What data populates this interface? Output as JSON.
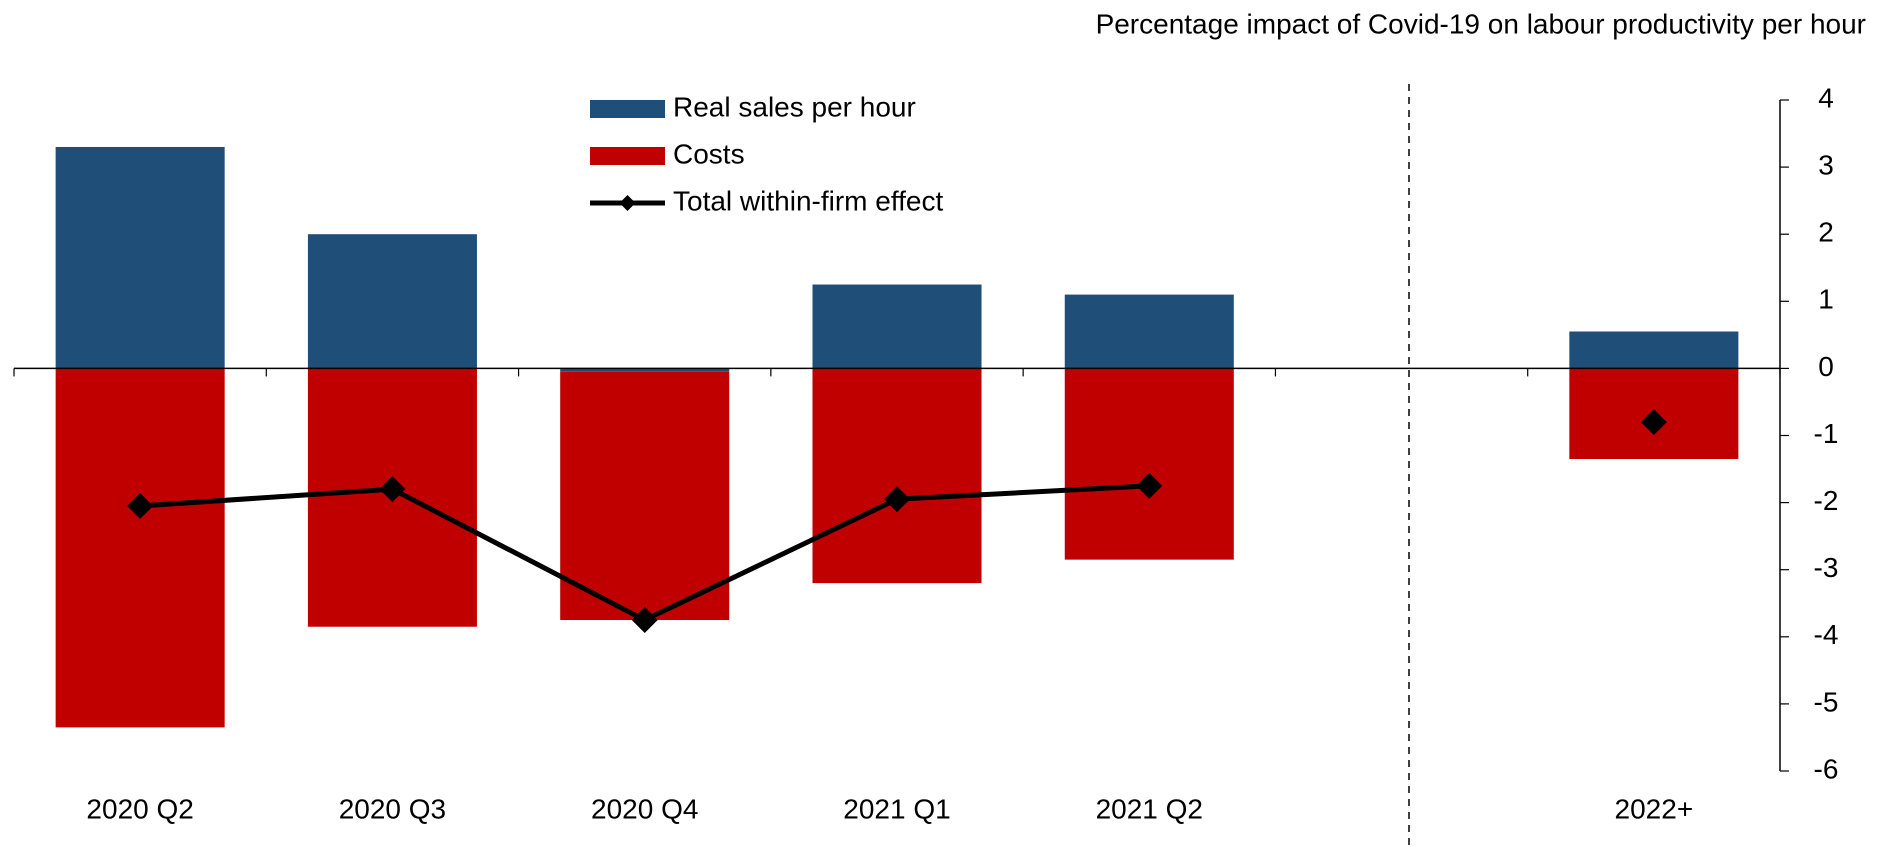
{
  "chart_data": {
    "type": "bar",
    "stacked": true,
    "title": "Percentage impact of Covid-19 on labour productivity per hour",
    "categories": [
      "2020 Q2",
      "2020 Q3",
      "2020 Q4",
      "2021 Q1",
      "2021 Q2",
      null,
      "2022+"
    ],
    "series": [
      {
        "name": "Real sales per hour",
        "type": "bar",
        "color": "#1f4e79",
        "values": [
          3.3,
          2.0,
          -0.05,
          1.25,
          1.1,
          null,
          0.55
        ]
      },
      {
        "name": "Costs",
        "type": "bar",
        "color": "#c00000",
        "values": [
          -5.35,
          -3.85,
          -3.7,
          -3.2,
          -2.85,
          null,
          -1.35
        ]
      },
      {
        "name": "Total within-firm effect",
        "type": "line",
        "color": "#000000",
        "values": [
          -2.05,
          -1.8,
          -3.75,
          -1.95,
          -1.75,
          null,
          -0.8
        ]
      }
    ],
    "ylim": [
      -6,
      4
    ],
    "yticks": [
      -6,
      -5,
      -4,
      -3,
      -2,
      -1,
      0,
      1,
      2,
      3,
      4
    ],
    "y_axis_side": "right",
    "grid": false
  }
}
